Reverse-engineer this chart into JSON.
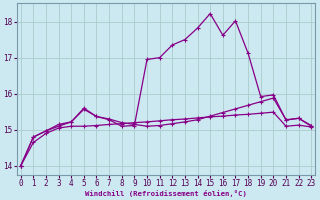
{
  "xlabel": "Windchill (Refroidissement éolien,°C)",
  "bg_color": "#cce8f0",
  "grid_color": "#aacccc",
  "line_color": "#880088",
  "line1_y": [
    14.0,
    14.8,
    14.97,
    15.1,
    15.22,
    15.57,
    15.37,
    15.3,
    15.2,
    15.15,
    15.1,
    15.12,
    15.17,
    15.22,
    15.28,
    15.38,
    15.48,
    15.58,
    15.68,
    15.78,
    15.88,
    15.28,
    15.32,
    15.12
  ],
  "line2_y": [
    14.0,
    14.8,
    14.97,
    15.15,
    15.22,
    15.6,
    15.37,
    15.28,
    15.1,
    15.12,
    16.95,
    17.0,
    17.35,
    17.5,
    17.82,
    18.22,
    17.62,
    18.02,
    17.12,
    15.92,
    15.97,
    15.27,
    15.32,
    15.1
  ],
  "line3_y": [
    14.0,
    14.65,
    14.9,
    15.05,
    15.1,
    15.1,
    15.12,
    15.15,
    15.17,
    15.2,
    15.22,
    15.25,
    15.28,
    15.3,
    15.33,
    15.36,
    15.38,
    15.41,
    15.43,
    15.46,
    15.49,
    15.1,
    15.13,
    15.08
  ],
  "x": [
    0,
    1,
    2,
    3,
    4,
    5,
    6,
    7,
    8,
    9,
    10,
    11,
    12,
    13,
    14,
    15,
    16,
    17,
    18,
    19,
    20,
    21,
    22,
    23
  ],
  "ylim": [
    13.75,
    18.5
  ],
  "yticks": [
    14,
    15,
    16,
    17,
    18
  ],
  "xlim": [
    -0.3,
    23.3
  ],
  "xticks": [
    0,
    1,
    2,
    3,
    4,
    5,
    6,
    7,
    8,
    9,
    10,
    11,
    12,
    13,
    14,
    15,
    16,
    17,
    18,
    19,
    20,
    21,
    22,
    23
  ]
}
